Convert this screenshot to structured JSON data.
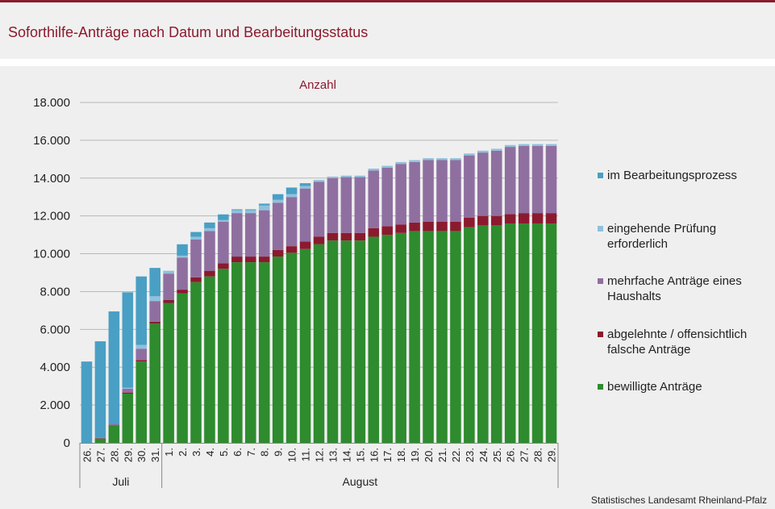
{
  "header": {
    "title": "Soforthilfe-Anträge nach Datum und Bearbeitungsstatus"
  },
  "source": "Statistisches Landesamt Rheinland-Pfalz",
  "chart_data": {
    "type": "bar",
    "stacked": true,
    "ylabel": "Anzahl",
    "ylim": [
      0,
      18000
    ],
    "yticks": [
      0,
      2000,
      4000,
      6000,
      8000,
      10000,
      12000,
      14000,
      16000,
      18000
    ],
    "ytick_labels": [
      "0",
      "2.000",
      "4.000",
      "6.000",
      "8.000",
      "10.000",
      "12.000",
      "14.000",
      "16.000",
      "18.000"
    ],
    "grid": true,
    "legend_position": "right",
    "categories": [
      "26.",
      "27.",
      "28.",
      "29.",
      "30.",
      "31.",
      "1.",
      "2.",
      "3.",
      "4.",
      "5.",
      "6.",
      "7.",
      "8.",
      "9.",
      "10.",
      "11.",
      "12.",
      "13.",
      "14.",
      "15.",
      "16.",
      "17.",
      "18.",
      "19.",
      "20.",
      "21.",
      "22.",
      "23.",
      "24.",
      "25.",
      "26.",
      "27.",
      "28.",
      "29."
    ],
    "groups": [
      {
        "label": "Juli",
        "count": 6
      },
      {
        "label": "August",
        "count": 29
      }
    ],
    "series": [
      {
        "name": "bewilligte Anträge",
        "color": "#2e8b2e",
        "values": [
          0,
          230,
          900,
          2600,
          4300,
          6300,
          7400,
          7900,
          8500,
          8800,
          9200,
          9550,
          9550,
          9550,
          9850,
          10050,
          10250,
          10500,
          10700,
          10700,
          10700,
          10900,
          11000,
          11100,
          11200,
          11200,
          11200,
          11200,
          11400,
          11500,
          11500,
          11600,
          11600,
          11600,
          11600
        ]
      },
      {
        "name": "abgelehnte / offensichtlich falsche Anträge",
        "color": "#8b1a2e",
        "values": [
          0,
          10,
          20,
          60,
          80,
          100,
          150,
          200,
          250,
          300,
          300,
          300,
          300,
          300,
          350,
          350,
          400,
          400,
          400,
          400,
          400,
          450,
          450,
          450,
          450,
          500,
          500,
          500,
          500,
          500,
          500,
          500,
          550,
          550,
          550
        ]
      },
      {
        "name": "mehrfache Anträge eines Haushalts",
        "color": "#8f6fa0",
        "values": [
          0,
          30,
          80,
          200,
          600,
          1100,
          1400,
          1700,
          2000,
          2100,
          2200,
          2300,
          2300,
          2450,
          2500,
          2600,
          2800,
          2900,
          2900,
          2950,
          2950,
          3050,
          3100,
          3200,
          3200,
          3250,
          3250,
          3250,
          3300,
          3350,
          3450,
          3550,
          3550,
          3550,
          3550
        ]
      },
      {
        "name": "eingehende Prüfung erforderlich",
        "color": "#8fc1dd",
        "values": [
          0,
          0,
          0,
          50,
          200,
          250,
          150,
          100,
          150,
          150,
          80,
          150,
          150,
          250,
          150,
          150,
          130,
          100,
          80,
          80,
          80,
          100,
          100,
          100,
          100,
          100,
          100,
          100,
          100,
          100,
          100,
          100,
          100,
          100,
          100
        ]
      },
      {
        "name": "im Bearbeitungsprozess",
        "color": "#4a9fc4",
        "values": [
          4300,
          5100,
          5950,
          5050,
          3620,
          1500,
          0,
          600,
          250,
          300,
          300,
          50,
          50,
          100,
          300,
          350,
          150,
          0,
          0,
          0,
          0,
          0,
          0,
          0,
          0,
          0,
          0,
          0,
          0,
          0,
          0,
          0,
          0,
          0,
          0
        ]
      }
    ],
    "legend_order": [
      "im Bearbeitungsprozess",
      "eingehende Prüfung erforderlich",
      "mehrfache Anträge eines Haushalts",
      "abgelehnte / offensichtlich falsche Anträge",
      "bewilligte Anträge"
    ]
  }
}
